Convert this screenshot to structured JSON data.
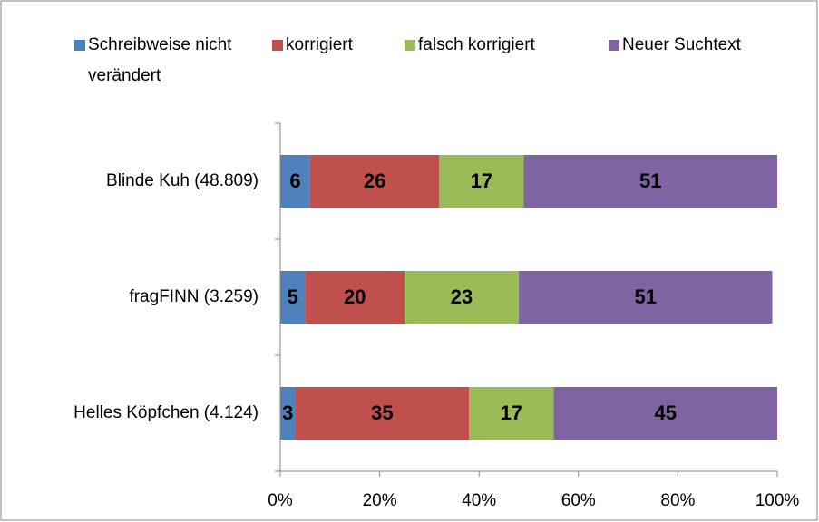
{
  "chart_data": {
    "type": "stacked_bar_horizontal",
    "categories": [
      "Blinde Kuh (48.809)",
      "fragFINN (3.259)",
      "Helles Köpfchen (4.124)"
    ],
    "series": [
      {
        "name": "Schreibweise nicht verändert",
        "color": "#4f81bd",
        "values": [
          6,
          5,
          3
        ]
      },
      {
        "name": "korrigiert",
        "color": "#c0504d",
        "values": [
          26,
          20,
          35
        ]
      },
      {
        "name": "falsch korrigiert",
        "color": "#9bbb59",
        "values": [
          17,
          23,
          17
        ]
      },
      {
        "name": "Neuer Suchtext",
        "color": "#8064a2",
        "values": [
          51,
          51,
          45
        ]
      }
    ],
    "xlim": [
      0,
      100
    ],
    "xticks": [
      {
        "value": 0,
        "label": "0%"
      },
      {
        "value": 20,
        "label": "20%"
      },
      {
        "value": 40,
        "label": "40%"
      },
      {
        "value": 60,
        "label": "60%"
      },
      {
        "value": 80,
        "label": "80%"
      },
      {
        "value": 100,
        "label": "100%"
      }
    ],
    "legend": "top"
  }
}
